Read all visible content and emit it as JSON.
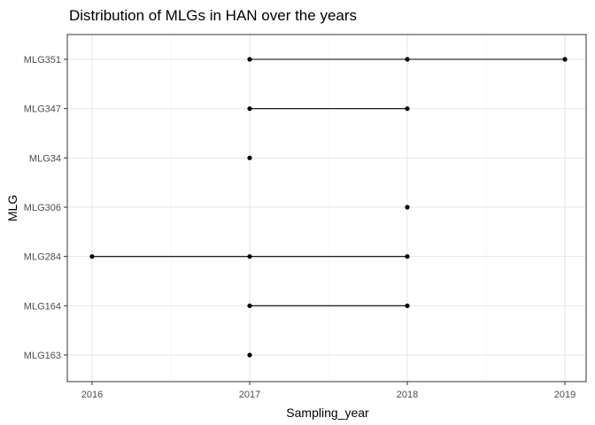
{
  "chart_data": {
    "type": "scatter",
    "title": "Distribution of MLGs in HAN over the years",
    "xlabel": "Sampling_year",
    "ylabel": "MLG",
    "xlim": [
      2015.9,
      2020.1
    ],
    "x_ticks": [
      "2016",
      "2017",
      "2018",
      "2019"
    ],
    "categories": [
      "MLG163",
      "MLG164",
      "MLG284",
      "MLG306",
      "MLG34",
      "MLG347",
      "MLG351"
    ],
    "series": [
      {
        "category": "MLG351",
        "years": [
          2017,
          2018,
          2019
        ]
      },
      {
        "category": "MLG347",
        "years": [
          2017,
          2018
        ]
      },
      {
        "category": "MLG34",
        "years": [
          2017
        ]
      },
      {
        "category": "MLG306",
        "years": [
          2018
        ]
      },
      {
        "category": "MLG284",
        "years": [
          2016,
          2017,
          2018
        ]
      },
      {
        "category": "MLG164",
        "years": [
          2017,
          2018
        ]
      },
      {
        "category": "MLG163",
        "years": [
          2017
        ]
      }
    ],
    "grid": true,
    "point_color": "#000000",
    "line_color": "#000000"
  }
}
